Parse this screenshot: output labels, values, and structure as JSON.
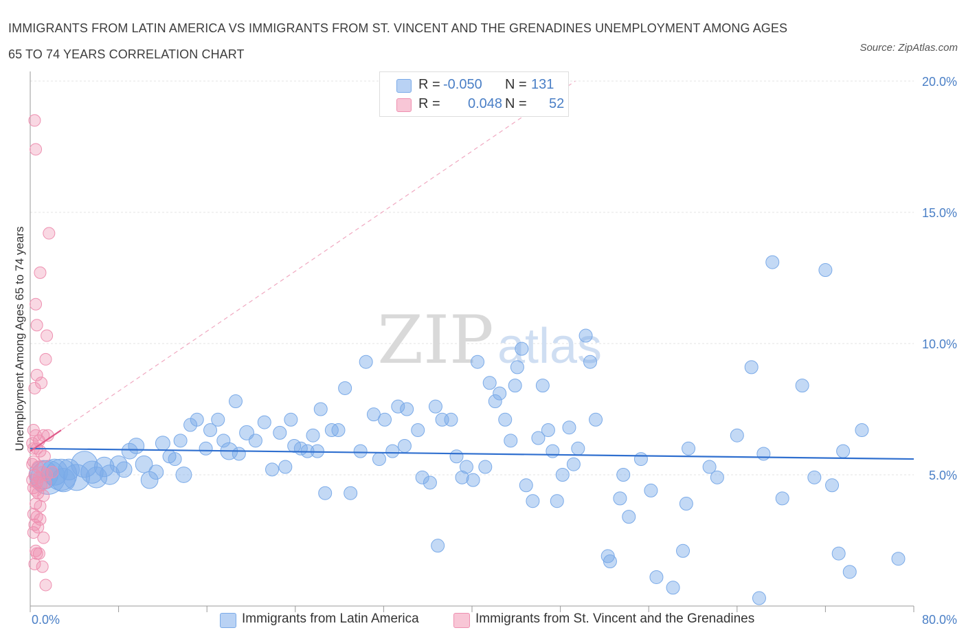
{
  "title_line1": "IMMIGRANTS FROM LATIN AMERICA VS IMMIGRANTS FROM ST. VINCENT AND THE GRENADINES UNEMPLOYMENT AMONG AGES",
  "title_line2": "65 TO 74 YEARS CORRELATION CHART",
  "source": "Source: ZipAtlas.com",
  "watermark_zip": "ZIP",
  "watermark_atlas": "atlas",
  "colors": {
    "blue": "#7aaae8",
    "blue_fill": "rgba(122,170,232,0.45)",
    "blue_line": "#2f6fcf",
    "pink": "#ee8fb0",
    "pink_fill": "rgba(238,143,176,0.35)",
    "pink_line": "#e05a8a",
    "accent_text": "#4a7fc6"
  },
  "legend": {
    "rows": [
      {
        "r_label": "R =",
        "r_value": "-0.050",
        "n_label": "N =",
        "n_value": "131"
      },
      {
        "r_label": "R =",
        "r_value": "0.048",
        "n_label": "N =",
        "n_value": "52"
      }
    ]
  },
  "bottom_legend": {
    "series1": "Immigrants from Latin America",
    "series2": "Immigrants from St. Vincent and the Grenadines"
  },
  "chart_data": {
    "type": "scatter",
    "title": "Immigrants from Latin America vs Immigrants from St. Vincent and the Grenadines Unemployment Among Ages 65 to 74 Years Correlation Chart",
    "xlabel": "",
    "ylabel": "Unemployment Among Ages 65 to 74 years",
    "xlim": [
      0,
      80
    ],
    "ylim": [
      0,
      20
    ],
    "x_tick_labels": [
      "0.0%",
      "80.0%"
    ],
    "y_ticks": [
      5,
      10,
      15,
      20
    ],
    "y_tick_labels": [
      "5.0%",
      "10.0%",
      "15.0%",
      "20.0%"
    ],
    "grid": true,
    "legend_placement": "top-center",
    "series": [
      {
        "name": "Immigrants from Latin America",
        "R": -0.05,
        "N": 131,
        "trend": {
          "x": [
            0,
            80
          ],
          "y": [
            6.0,
            5.6
          ]
        },
        "points": [
          [
            1.2,
            5.0,
            2.2
          ],
          [
            1.6,
            4.9,
            2.6
          ],
          [
            2.2,
            5.1,
            2.0
          ],
          [
            2.8,
            5.0,
            2.4
          ],
          [
            3.0,
            4.8,
            1.8
          ],
          [
            3.5,
            5.2,
            1.6
          ],
          [
            4.2,
            4.9,
            2.0
          ],
          [
            4.9,
            5.4,
            2.0
          ],
          [
            5.6,
            5.1,
            1.7
          ],
          [
            6.0,
            4.9,
            1.6
          ],
          [
            6.7,
            5.3,
            1.5
          ],
          [
            7.2,
            5.0,
            1.5
          ],
          [
            8.0,
            5.4,
            1.3
          ],
          [
            8.5,
            5.2,
            1.2
          ],
          [
            9.0,
            5.9,
            1.2
          ],
          [
            9.6,
            6.1,
            1.2
          ],
          [
            10.3,
            5.4,
            1.3
          ],
          [
            10.8,
            4.8,
            1.3
          ],
          [
            11.4,
            5.1,
            1.1
          ],
          [
            12.0,
            6.2,
            1.1
          ],
          [
            12.6,
            5.7,
            1.0
          ],
          [
            13.1,
            5.6,
            1.0
          ],
          [
            13.6,
            6.3,
            1.0
          ],
          [
            13.9,
            5.0,
            1.2
          ],
          [
            14.5,
            6.9,
            1.0
          ],
          [
            15.1,
            7.1,
            1.0
          ],
          [
            15.9,
            6.0,
            1.0
          ],
          [
            16.3,
            6.7,
            1.0
          ],
          [
            17.0,
            7.1,
            1.0
          ],
          [
            17.5,
            6.3,
            1.0
          ],
          [
            18.0,
            5.9,
            1.3
          ],
          [
            18.9,
            5.8,
            1.0
          ],
          [
            18.6,
            7.8,
            1.0
          ],
          [
            19.6,
            6.6,
            1.1
          ],
          [
            20.4,
            6.3,
            1.0
          ],
          [
            21.2,
            7.0,
            1.0
          ],
          [
            21.9,
            5.2,
            1.0
          ],
          [
            22.6,
            6.6,
            1.0
          ],
          [
            23.1,
            5.3,
            1.0
          ],
          [
            23.9,
            6.1,
            1.0
          ],
          [
            23.6,
            7.1,
            1.0
          ],
          [
            24.5,
            6.0,
            1.0
          ],
          [
            25.1,
            5.9,
            1.0
          ],
          [
            25.6,
            6.5,
            1.0
          ],
          [
            26.0,
            5.9,
            1.0
          ],
          [
            26.3,
            7.5,
            1.0
          ],
          [
            26.7,
            4.3,
            1.0
          ],
          [
            27.3,
            6.7,
            1.0
          ],
          [
            27.9,
            6.7,
            1.0
          ],
          [
            28.5,
            8.3,
            1.0
          ],
          [
            29.0,
            4.3,
            1.0
          ],
          [
            29.9,
            5.9,
            1.0
          ],
          [
            30.4,
            9.3,
            1.0
          ],
          [
            31.1,
            7.3,
            1.0
          ],
          [
            31.6,
            5.6,
            1.0
          ],
          [
            32.1,
            7.1,
            1.0
          ],
          [
            32.8,
            5.9,
            1.0
          ],
          [
            33.3,
            7.6,
            1.0
          ],
          [
            33.9,
            6.1,
            1.0
          ],
          [
            34.1,
            7.5,
            1.0
          ],
          [
            35.1,
            6.7,
            1.0
          ],
          [
            35.5,
            4.9,
            1.0
          ],
          [
            36.2,
            4.7,
            1.0
          ],
          [
            36.7,
            7.6,
            1.0
          ],
          [
            37.3,
            7.1,
            1.0
          ],
          [
            36.9,
            2.3,
            1.0
          ],
          [
            38.1,
            7.1,
            1.0
          ],
          [
            38.6,
            5.7,
            1.0
          ],
          [
            39.1,
            4.9,
            1.0
          ],
          [
            39.5,
            5.3,
            1.0
          ],
          [
            40.1,
            4.8,
            1.0
          ],
          [
            40.5,
            9.3,
            1.0
          ],
          [
            41.2,
            5.3,
            1.0
          ],
          [
            41.6,
            8.5,
            1.0
          ],
          [
            42.1,
            7.8,
            1.0
          ],
          [
            42.5,
            8.1,
            1.0
          ],
          [
            43.0,
            7.1,
            1.0
          ],
          [
            43.5,
            6.3,
            1.0
          ],
          [
            43.9,
            8.4,
            1.0
          ],
          [
            44.5,
            9.8,
            1.0
          ],
          [
            44.1,
            9.1,
            1.0
          ],
          [
            44.9,
            4.6,
            1.0
          ],
          [
            45.5,
            4.0,
            1.0
          ],
          [
            46.0,
            6.4,
            1.0
          ],
          [
            46.4,
            8.4,
            1.0
          ],
          [
            46.9,
            6.7,
            1.0
          ],
          [
            47.3,
            5.9,
            1.0
          ],
          [
            47.7,
            4.0,
            1.0
          ],
          [
            48.2,
            5.0,
            1.0
          ],
          [
            48.8,
            6.8,
            1.0
          ],
          [
            49.2,
            5.4,
            1.0
          ],
          [
            49.6,
            6.0,
            1.0
          ],
          [
            50.3,
            10.3,
            1.0
          ],
          [
            50.7,
            9.3,
            1.0
          ],
          [
            51.2,
            7.1,
            1.0
          ],
          [
            52.5,
            1.7,
            1.0
          ],
          [
            52.3,
            1.9,
            1.0
          ],
          [
            53.4,
            4.1,
            1.0
          ],
          [
            53.7,
            5.0,
            1.0
          ],
          [
            54.2,
            3.4,
            1.0
          ],
          [
            55.3,
            5.6,
            1.0
          ],
          [
            56.2,
            4.4,
            1.0
          ],
          [
            56.7,
            1.1,
            1.0
          ],
          [
            58.2,
            0.7,
            1.0
          ],
          [
            59.1,
            2.1,
            1.0
          ],
          [
            59.4,
            3.9,
            1.0
          ],
          [
            59.6,
            6.0,
            1.0
          ],
          [
            61.5,
            5.3,
            1.0
          ],
          [
            62.2,
            4.9,
            1.0
          ],
          [
            64.0,
            6.5,
            1.0
          ],
          [
            65.3,
            9.1,
            1.0
          ],
          [
            66.4,
            5.8,
            1.0
          ],
          [
            67.2,
            13.1,
            1.0
          ],
          [
            66.0,
            0.3,
            1.0
          ],
          [
            68.1,
            4.1,
            1.0
          ],
          [
            69.9,
            8.4,
            1.0
          ],
          [
            71.0,
            4.9,
            1.0
          ],
          [
            72.0,
            12.8,
            1.0
          ],
          [
            72.6,
            4.6,
            1.0
          ],
          [
            73.6,
            5.9,
            1.0
          ],
          [
            73.2,
            2.0,
            1.0
          ],
          [
            74.2,
            1.3,
            1.0
          ],
          [
            75.3,
            6.7,
            1.0
          ],
          [
            78.6,
            1.8,
            1.0
          ]
        ]
      },
      {
        "name": "Immigrants from St. Vincent and the Grenadines",
        "R": 0.048,
        "N": 52,
        "trend": {
          "x": [
            0,
            2.8
          ],
          "y": [
            5.9,
            6.7
          ]
        },
        "points": [
          [
            0.4,
            18.5,
            1.0
          ],
          [
            0.5,
            17.4,
            1.0
          ],
          [
            1.7,
            14.2,
            1.0
          ],
          [
            0.9,
            12.7,
            1.0
          ],
          [
            0.5,
            11.5,
            1.0
          ],
          [
            0.6,
            10.7,
            1.0
          ],
          [
            1.5,
            10.3,
            1.0
          ],
          [
            1.4,
            9.4,
            1.0
          ],
          [
            0.6,
            8.8,
            1.0
          ],
          [
            1.0,
            8.5,
            1.0
          ],
          [
            0.4,
            8.3,
            1.0
          ],
          [
            0.3,
            6.7,
            1.0
          ],
          [
            0.5,
            6.5,
            1.0
          ],
          [
            0.8,
            6.3,
            1.0
          ],
          [
            1.2,
            6.5,
            1.0
          ],
          [
            1.6,
            6.5,
            1.0
          ],
          [
            0.2,
            6.2,
            1.0
          ],
          [
            0.6,
            6.0,
            1.0
          ],
          [
            0.9,
            5.9,
            1.0
          ],
          [
            1.3,
            5.7,
            1.0
          ],
          [
            0.3,
            5.5,
            1.0
          ],
          [
            0.7,
            5.3,
            1.0
          ],
          [
            1.1,
            5.1,
            1.0
          ],
          [
            0.4,
            5.0,
            1.0
          ],
          [
            0.8,
            4.9,
            1.0
          ],
          [
            1.5,
            5.0,
            1.0
          ],
          [
            2.0,
            5.1,
            1.0
          ],
          [
            0.2,
            4.8,
            1.0
          ],
          [
            0.6,
            4.7,
            1.0
          ],
          [
            1.0,
            4.6,
            1.0
          ],
          [
            1.4,
            4.7,
            1.0
          ],
          [
            0.3,
            4.5,
            1.0
          ],
          [
            0.7,
            4.3,
            1.0
          ],
          [
            1.2,
            4.2,
            1.0
          ],
          [
            0.5,
            3.9,
            1.0
          ],
          [
            0.9,
            3.8,
            1.0
          ],
          [
            0.3,
            3.5,
            1.0
          ],
          [
            0.6,
            3.4,
            1.0
          ],
          [
            0.9,
            3.3,
            1.0
          ],
          [
            0.4,
            3.1,
            1.0
          ],
          [
            0.7,
            3.0,
            1.0
          ],
          [
            0.3,
            2.8,
            1.0
          ],
          [
            1.2,
            2.6,
            1.0
          ],
          [
            0.5,
            2.1,
            1.0
          ],
          [
            0.8,
            2.0,
            1.0
          ],
          [
            0.6,
            2.0,
            1.0
          ],
          [
            0.4,
            1.6,
            1.0
          ],
          [
            1.1,
            1.5,
            1.0
          ],
          [
            1.4,
            0.8,
            1.0
          ],
          [
            0.2,
            5.4,
            1.0
          ],
          [
            0.3,
            6.0,
            1.0
          ],
          [
            0.5,
            4.4,
            1.0
          ]
        ]
      }
    ]
  }
}
